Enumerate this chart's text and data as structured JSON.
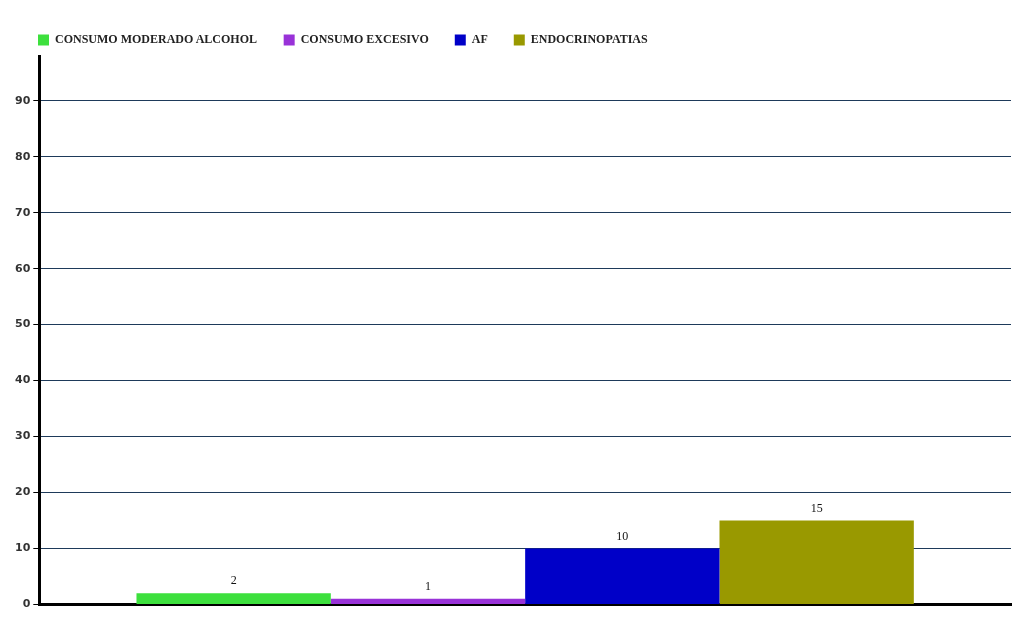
{
  "chart_data": {
    "type": "bar",
    "categories": [
      null
    ],
    "series": [
      {
        "name": "CONSUMO MODERADO ALCOHOL",
        "color": "#3de03d",
        "values": [
          2
        ]
      },
      {
        "name": "CONSUMO EXCESIVO",
        "color": "#9932d8",
        "values": [
          1
        ]
      },
      {
        "name": "AF",
        "color": "#0000c8",
        "values": [
          10
        ]
      },
      {
        "name": "ENDOCRINOPATIAS",
        "color": "#999900",
        "values": [
          15
        ]
      }
    ],
    "ylim": [
      0,
      98
    ],
    "yticks": [
      0,
      10,
      20,
      30,
      40,
      50,
      60,
      70,
      80,
      90
    ],
    "grid": "y",
    "legend": "top left",
    "data_labels": true
  }
}
